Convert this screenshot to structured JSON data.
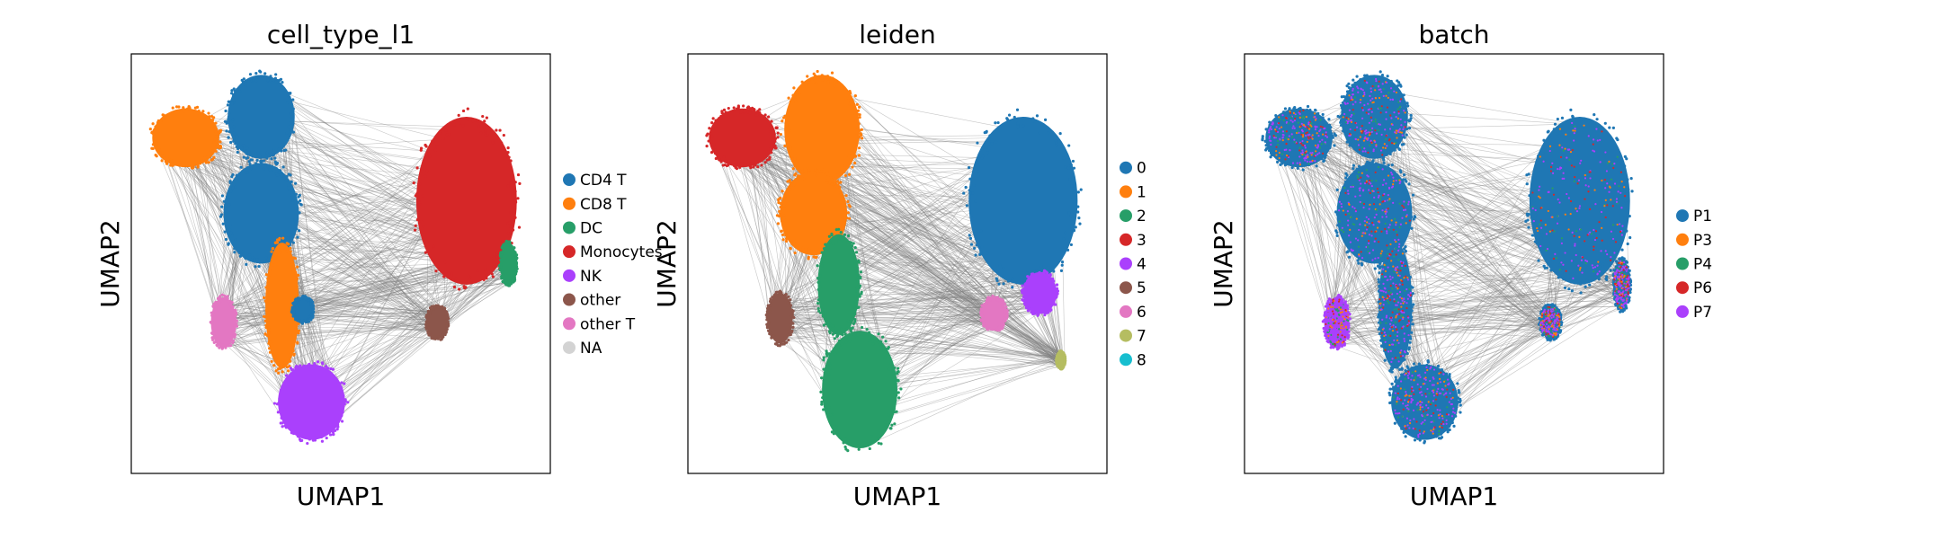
{
  "chart_data": [
    {
      "type": "scatter",
      "title": "cell_type_l1",
      "xlabel": "UMAP1",
      "ylabel": "UMAP2",
      "grid": false,
      "ticks": "none",
      "legend_placement": "right",
      "edges": "PAGA-style gray connectivity lines between clusters",
      "legend": [
        {
          "label": "CD4 T",
          "color": "#1f77b4"
        },
        {
          "label": "CD8 T",
          "color": "#ff7f0e"
        },
        {
          "label": "DC",
          "color": "#279e68"
        },
        {
          "label": "Monocytes",
          "color": "#d62728"
        },
        {
          "label": "NK",
          "color": "#aa40fc"
        },
        {
          "label": "other",
          "color": "#8c564b"
        },
        {
          "label": "other T",
          "color": "#e377c2"
        },
        {
          "label": "NA",
          "color": "#d3d3d3"
        }
      ],
      "clusters": [
        {
          "label": "CD8 T",
          "x": 0.13,
          "y": 0.8,
          "rx": 0.08,
          "ry": 0.07
        },
        {
          "label": "CD4 T",
          "x": 0.31,
          "y": 0.85,
          "rx": 0.08,
          "ry": 0.1
        },
        {
          "label": "CD4 T",
          "x": 0.31,
          "y": 0.62,
          "rx": 0.09,
          "ry": 0.12
        },
        {
          "label": "CD8 T",
          "x": 0.36,
          "y": 0.4,
          "rx": 0.04,
          "ry": 0.15
        },
        {
          "label": "CD4 T",
          "x": 0.41,
          "y": 0.39,
          "rx": 0.025,
          "ry": 0.03
        },
        {
          "label": "other T",
          "x": 0.22,
          "y": 0.36,
          "rx": 0.03,
          "ry": 0.06
        },
        {
          "label": "NK",
          "x": 0.43,
          "y": 0.17,
          "rx": 0.08,
          "ry": 0.09
        },
        {
          "label": "Monocytes",
          "x": 0.8,
          "y": 0.65,
          "rx": 0.12,
          "ry": 0.2
        },
        {
          "label": "DC",
          "x": 0.9,
          "y": 0.5,
          "rx": 0.02,
          "ry": 0.05
        },
        {
          "label": "other",
          "x": 0.73,
          "y": 0.36,
          "rx": 0.025,
          "ry": 0.04
        }
      ]
    },
    {
      "type": "scatter",
      "title": "leiden",
      "xlabel": "UMAP1",
      "ylabel": "UMAP2",
      "grid": false,
      "ticks": "none",
      "legend_placement": "right",
      "edges": "PAGA-style gray connectivity lines between clusters",
      "legend": [
        {
          "label": "0",
          "color": "#1f77b4"
        },
        {
          "label": "1",
          "color": "#ff7f0e"
        },
        {
          "label": "2",
          "color": "#279e68"
        },
        {
          "label": "3",
          "color": "#d62728"
        },
        {
          "label": "4",
          "color": "#aa40fc"
        },
        {
          "label": "5",
          "color": "#8c564b"
        },
        {
          "label": "6",
          "color": "#e377c2"
        },
        {
          "label": "7",
          "color": "#b5bd61"
        },
        {
          "label": "8",
          "color": "#17becf"
        }
      ],
      "clusters": [
        {
          "label": "3",
          "x": 0.13,
          "y": 0.8,
          "rx": 0.08,
          "ry": 0.07
        },
        {
          "label": "1",
          "x": 0.32,
          "y": 0.82,
          "rx": 0.09,
          "ry": 0.13
        },
        {
          "label": "1",
          "x": 0.3,
          "y": 0.62,
          "rx": 0.08,
          "ry": 0.1
        },
        {
          "label": "2",
          "x": 0.36,
          "y": 0.45,
          "rx": 0.05,
          "ry": 0.12
        },
        {
          "label": "2",
          "x": 0.41,
          "y": 0.2,
          "rx": 0.09,
          "ry": 0.14
        },
        {
          "label": "5",
          "x": 0.22,
          "y": 0.37,
          "rx": 0.03,
          "ry": 0.06
        },
        {
          "label": "0",
          "x": 0.8,
          "y": 0.65,
          "rx": 0.13,
          "ry": 0.2
        },
        {
          "label": "4",
          "x": 0.84,
          "y": 0.43,
          "rx": 0.04,
          "ry": 0.05
        },
        {
          "label": "6",
          "x": 0.73,
          "y": 0.38,
          "rx": 0.03,
          "ry": 0.04
        },
        {
          "label": "7",
          "x": 0.89,
          "y": 0.27,
          "rx": 0.01,
          "ry": 0.02
        }
      ]
    },
    {
      "type": "scatter",
      "title": "batch",
      "xlabel": "UMAP1",
      "ylabel": "UMAP2",
      "grid": false,
      "ticks": "none",
      "legend_placement": "right",
      "edges": "PAGA-style gray connectivity lines between clusters",
      "legend": [
        {
          "label": "P1",
          "color": "#1f77b4"
        },
        {
          "label": "P3",
          "color": "#ff7f0e"
        },
        {
          "label": "P4",
          "color": "#279e68"
        },
        {
          "label": "P6",
          "color": "#d62728"
        },
        {
          "label": "P7",
          "color": "#aa40fc"
        }
      ],
      "clusters": [
        {
          "label": "P1",
          "x": 0.13,
          "y": 0.8,
          "rx": 0.08,
          "ry": 0.07
        },
        {
          "label": "P1",
          "x": 0.31,
          "y": 0.85,
          "rx": 0.08,
          "ry": 0.1
        },
        {
          "label": "P1",
          "x": 0.31,
          "y": 0.62,
          "rx": 0.09,
          "ry": 0.12
        },
        {
          "label": "P1",
          "x": 0.36,
          "y": 0.4,
          "rx": 0.04,
          "ry": 0.15
        },
        {
          "label": "P1",
          "x": 0.43,
          "y": 0.17,
          "rx": 0.08,
          "ry": 0.09
        },
        {
          "label": "P7",
          "x": 0.22,
          "y": 0.36,
          "rx": 0.03,
          "ry": 0.06
        },
        {
          "label": "P1",
          "x": 0.8,
          "y": 0.65,
          "rx": 0.12,
          "ry": 0.2
        },
        {
          "label": "P1",
          "x": 0.9,
          "y": 0.45,
          "rx": 0.02,
          "ry": 0.06
        },
        {
          "label": "P1",
          "x": 0.73,
          "y": 0.36,
          "rx": 0.025,
          "ry": 0.04
        }
      ]
    }
  ]
}
